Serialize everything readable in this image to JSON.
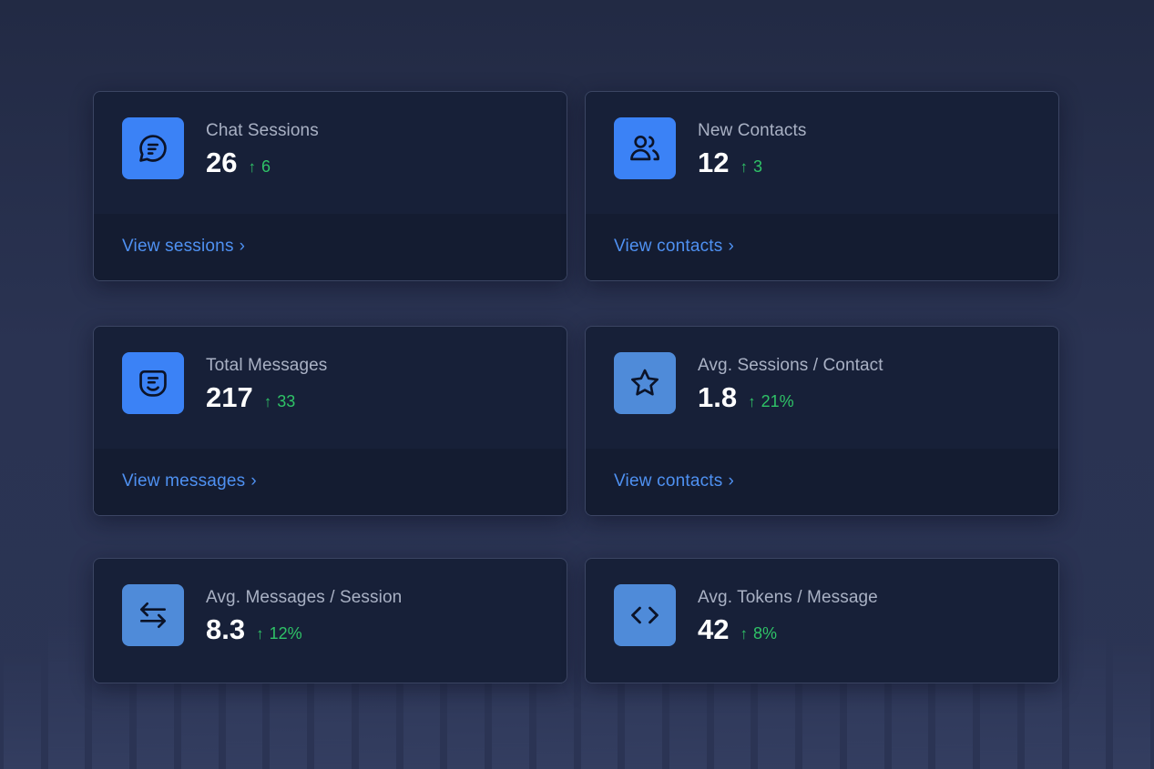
{
  "colors": {
    "icon_blue": "#3b82f6",
    "icon_blue_soft": "#4f8bd9",
    "delta_green": "#2fc367",
    "link_blue": "#4f91f2"
  },
  "cards": [
    {
      "label": "Chat Sessions",
      "value": "26",
      "delta": "6",
      "link": "View sessions",
      "icon": "chat-bubble-icon"
    },
    {
      "label": "New Contacts",
      "value": "12",
      "delta": "3",
      "link": "View contacts",
      "icon": "users-icon"
    },
    {
      "label": "Total Messages",
      "value": "217",
      "delta": "33",
      "link": "View messages",
      "icon": "smiley-message-icon"
    },
    {
      "label": "Avg. Sessions / Contact",
      "value": "1.8",
      "delta": "21%",
      "link": "View contacts",
      "icon": "star-icon"
    },
    {
      "label": "Avg. Messages / Session",
      "value": "8.3",
      "delta": "12%",
      "icon": "arrows-exchange-icon"
    },
    {
      "label": "Avg. Tokens / Message",
      "value": "42",
      "delta": "8%",
      "icon": "code-icon"
    }
  ]
}
